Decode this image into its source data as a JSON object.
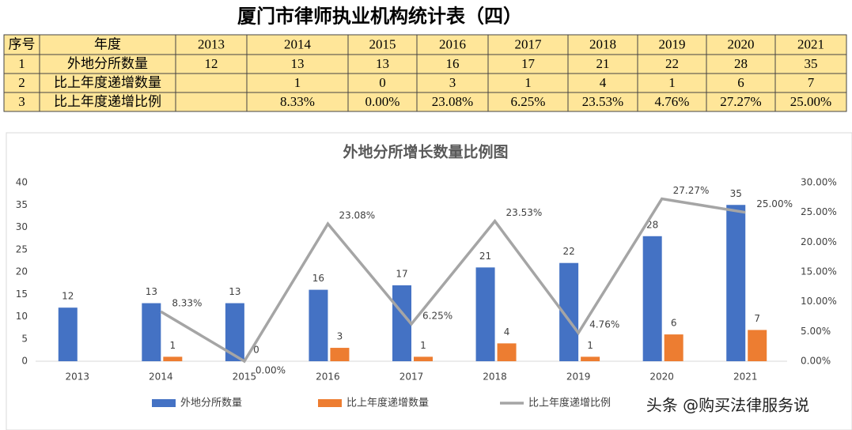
{
  "table": {
    "title": "厦门市律师执业机构统计表（四）",
    "header": [
      "序号",
      "年度",
      "2013",
      "2014",
      "2015",
      "2016",
      "2017",
      "2018",
      "2019",
      "2020",
      "2021"
    ],
    "rows": [
      [
        "1",
        "外地分所数量",
        "12",
        "13",
        "13",
        "16",
        "17",
        "21",
        "22",
        "28",
        "35"
      ],
      [
        "2",
        "比上年度递增数量",
        null,
        "1",
        "0",
        "3",
        "1",
        "4",
        "1",
        "6",
        "7"
      ],
      [
        "3",
        "比上年度递增比例",
        null,
        "8.33%",
        "0.00%",
        "23.08%",
        "6.25%",
        "23.53%",
        "4.76%",
        "27.27%",
        "25.00%"
      ]
    ]
  },
  "chart_data": {
    "type": "bar",
    "title": "外地分所增长数量比例图",
    "categories": [
      "2013",
      "2014",
      "2015",
      "2016",
      "2017",
      "2018",
      "2019",
      "2020",
      "2021"
    ],
    "series": [
      {
        "name": "外地分所数量",
        "color": "#4472c4",
        "values": [
          12,
          13,
          13,
          16,
          17,
          21,
          22,
          28,
          35
        ]
      },
      {
        "name": "比上年度递增数量",
        "color": "#ed7d31",
        "values": [
          null,
          1,
          0,
          3,
          1,
          4,
          1,
          6,
          7
        ]
      },
      {
        "name": "比上年度递增比例",
        "type": "line",
        "axis": "y2",
        "color": "#a5a5a5",
        "values": [
          null,
          8.33,
          0,
          23.08,
          6.25,
          23.53,
          4.76,
          27.27,
          25
        ],
        "value_labels": [
          null,
          "8.33%",
          "0.00%",
          "23.08%",
          "6.25%",
          "23.53%",
          "4.76%",
          "27.27%",
          "25.00%"
        ]
      }
    ],
    "ylim": [
      0,
      40
    ],
    "yticks": [
      0,
      5,
      10,
      15,
      20,
      25,
      30,
      35,
      40
    ],
    "y2lim": [
      0,
      30
    ],
    "y2ticks": [
      {
        "value": 0,
        "label": "0.00%"
      },
      {
        "value": 5,
        "label": "5.00%"
      },
      {
        "value": 10,
        "label": "10.00%"
      },
      {
        "value": 15,
        "label": "15.00%"
      },
      {
        "value": 20,
        "label": "20.00%"
      },
      {
        "value": 25,
        "label": "25.00%"
      },
      {
        "value": 30,
        "label": "30.00%"
      }
    ],
    "grid": false
  },
  "watermark": "头条 @购买法律服务说"
}
